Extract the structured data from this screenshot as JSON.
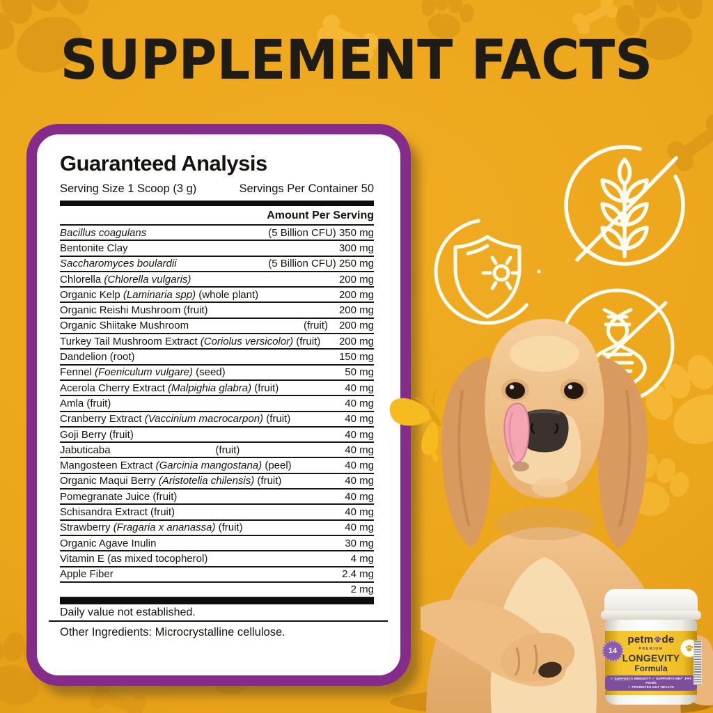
{
  "title": "SUPPLEMENT FACTS",
  "panel": {
    "heading": "Guaranteed Analysis",
    "serving_size": "Serving Size 1 Scoop (3 g)",
    "servings_per_container": "Servings Per Container 50",
    "amount_header": "Amount Per Serving",
    "rows": [
      {
        "segments": [
          {
            "t": "Bacillus coagulans",
            "i": true
          }
        ],
        "mid": "",
        "mid_align": "",
        "amount": "(5 Billion CFU) 350 mg"
      },
      {
        "segments": [
          {
            "t": "Bentonite Clay",
            "i": false
          }
        ],
        "mid": "",
        "mid_align": "",
        "amount": "300 mg"
      },
      {
        "segments": [
          {
            "t": "Saccharomyces boulardii",
            "i": true
          }
        ],
        "mid": "",
        "mid_align": "",
        "amount": "(5 Billion CFU) 250 mg"
      },
      {
        "segments": [
          {
            "t": "Chlorella ",
            "i": false
          },
          {
            "t": "(Chlorella vulgaris)",
            "i": true
          }
        ],
        "mid": "",
        "mid_align": "",
        "amount": "200 mg"
      },
      {
        "segments": [
          {
            "t": "Organic Kelp ",
            "i": false
          },
          {
            "t": "(Laminaria spp)",
            "i": true
          },
          {
            "t": " (whole plant)",
            "i": false
          }
        ],
        "mid": "",
        "mid_align": "",
        "amount": "200 mg"
      },
      {
        "segments": [
          {
            "t": "Organic Reishi Mushroom (fruit)",
            "i": false
          }
        ],
        "mid": "",
        "mid_align": "",
        "amount": "200 mg"
      },
      {
        "segments": [
          {
            "t": "Organic Shiitake Mushroom",
            "i": false
          }
        ],
        "mid": "(fruit)",
        "mid_align": "right",
        "amount": "200 mg"
      },
      {
        "segments": [
          {
            "t": "Turkey Tail Mushroom Extract ",
            "i": false
          },
          {
            "t": "(Coriolus versicolor)",
            "i": true
          },
          {
            "t": " (fruit)",
            "i": false
          }
        ],
        "mid": "",
        "mid_align": "",
        "amount": "200 mg"
      },
      {
        "segments": [
          {
            "t": "Dandelion (root)",
            "i": false
          }
        ],
        "mid": "",
        "mid_align": "",
        "amount": "150 mg"
      },
      {
        "segments": [
          {
            "t": "Fennel ",
            "i": false
          },
          {
            "t": "(Foeniculum vulgare)",
            "i": true
          },
          {
            "t": " (seed)",
            "i": false
          }
        ],
        "mid": "",
        "mid_align": "",
        "amount": "50 mg"
      },
      {
        "segments": [
          {
            "t": "Acerola Cherry Extract ",
            "i": false
          },
          {
            "t": "(Malpighia glabra)",
            "i": true
          },
          {
            "t": " (fruit)",
            "i": false
          }
        ],
        "mid": "",
        "mid_align": "",
        "amount": "40 mg"
      },
      {
        "segments": [
          {
            "t": "Amla (fruit)",
            "i": false
          }
        ],
        "mid": "",
        "mid_align": "",
        "amount": "40 mg"
      },
      {
        "segments": [
          {
            "t": "Cranberry Extract ",
            "i": false
          },
          {
            "t": "(Vaccinium macrocarpon)",
            "i": true
          },
          {
            "t": " (fruit)",
            "i": false
          }
        ],
        "mid": "",
        "mid_align": "",
        "amount": "40 mg"
      },
      {
        "segments": [
          {
            "t": "Goji Berry (fruit)",
            "i": false
          }
        ],
        "mid": "",
        "mid_align": "",
        "amount": "40 mg"
      },
      {
        "segments": [
          {
            "t": "Jabuticaba",
            "i": false
          }
        ],
        "mid": "(fruit)",
        "mid_align": "center",
        "amount": "40 mg"
      },
      {
        "segments": [
          {
            "t": "Mangosteen Extract ",
            "i": false
          },
          {
            "t": "(Garcinia mangostana)",
            "i": true
          },
          {
            "t": " (peel)",
            "i": false
          }
        ],
        "mid": "",
        "mid_align": "",
        "amount": "40 mg"
      },
      {
        "segments": [
          {
            "t": "Organic Maqui Berry ",
            "i": false
          },
          {
            "t": "(Aristotelia chilensis)",
            "i": true
          },
          {
            "t": " (fruit)",
            "i": false
          }
        ],
        "mid": "",
        "mid_align": "",
        "amount": "40 mg"
      },
      {
        "segments": [
          {
            "t": "Pomegranate Juice (fruit)",
            "i": false
          }
        ],
        "mid": "",
        "mid_align": "",
        "amount": "40 mg"
      },
      {
        "segments": [
          {
            "t": "Schisandra Extract (fruit)",
            "i": false
          }
        ],
        "mid": "",
        "mid_align": "",
        "amount": "40 mg"
      },
      {
        "segments": [
          {
            "t": "Strawberry ",
            "i": false
          },
          {
            "t": "(Fragaria x ananassa)",
            "i": true
          },
          {
            "t": " (fruit)",
            "i": false
          }
        ],
        "mid": "",
        "mid_align": "",
        "amount": "40 mg"
      },
      {
        "segments": [
          {
            "t": "Organic Agave Inulin",
            "i": false
          }
        ],
        "mid": "",
        "mid_align": "",
        "amount": "30 mg"
      },
      {
        "segments": [
          {
            "t": "Vitamin E (as mixed tocopherol)",
            "i": false
          }
        ],
        "mid": "",
        "mid_align": "",
        "amount": "4 mg"
      },
      {
        "segments": [
          {
            "t": "Apple Fiber",
            "i": false
          }
        ],
        "mid": "",
        "mid_align": "",
        "amount": "2.4 mg"
      },
      {
        "segments": [],
        "mid": "",
        "mid_align": "",
        "amount": "2 mg"
      }
    ],
    "footnote": "Daily value not established.",
    "other_ingredients": "Other Ingredients: Microcrystalline cellulose."
  },
  "jar": {
    "brand_prefix": "petm",
    "brand_suffix": "de",
    "premium": "PREMIUM",
    "line1": "LONGEVITY",
    "line2": "Formula",
    "badge_number": "14",
    "ribbon_line1": "✓ SUPPORTS IMMUNITY   ✓ SUPPORTS HEALTHY AGING",
    "ribbon_line2": "✓ PROMOTES GUT HEALTH",
    "cert_mark": "✓"
  },
  "icons": {
    "grain_free": "grain-free-icon",
    "immunity": "immune-shield-icon",
    "dna": "dna-gene-icon",
    "butterfly": "butterfly-icon",
    "paw": "paw-print-icon",
    "bone": "bone-icon"
  },
  "colors": {
    "background_gold": "#ECA61C",
    "panel_border_purple": "#852B8C",
    "table_ink": "#151515",
    "jar_label_yellow": "#F6C82F",
    "jar_ribbon_purple": "#7C4E9B",
    "butterfly_gold": "#F5B81E",
    "icon_stroke": "#FFFDF2"
  }
}
